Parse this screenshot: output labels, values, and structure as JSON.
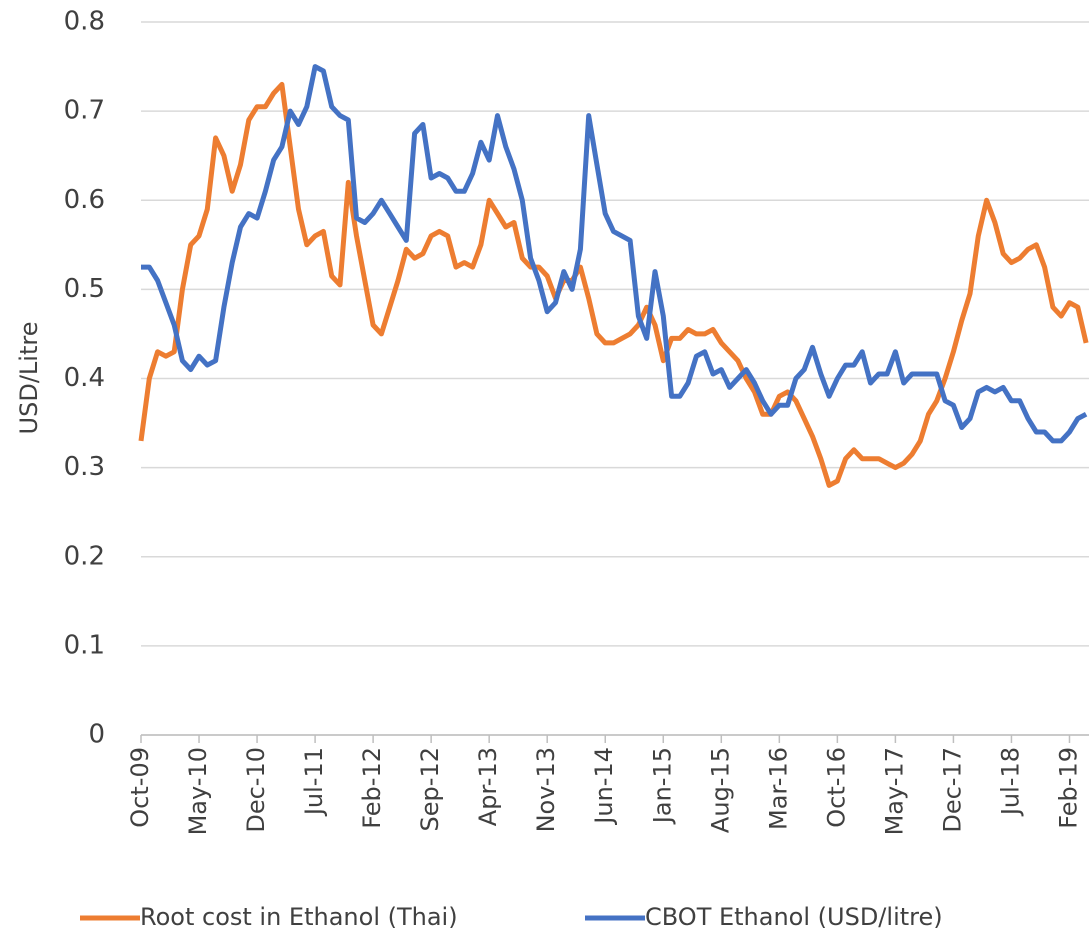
{
  "chart_data": {
    "type": "line",
    "y_label": "USD/Litre",
    "categories": [
      "Oct-09",
      null,
      null,
      null,
      null,
      null,
      null,
      "May-10",
      null,
      null,
      null,
      null,
      null,
      null,
      "Dec-10",
      null,
      null,
      null,
      null,
      null,
      null,
      "Jul-11",
      null,
      null,
      null,
      null,
      null,
      null,
      "Feb-12",
      null,
      null,
      null,
      null,
      null,
      null,
      "Sep-12",
      null,
      null,
      null,
      null,
      null,
      null,
      "Apr-13",
      null,
      null,
      null,
      null,
      null,
      null,
      "Nov-13",
      null,
      null,
      null,
      null,
      null,
      null,
      "Jun-14",
      null,
      null,
      null,
      null,
      null,
      null,
      "Jan-15",
      null,
      null,
      null,
      null,
      null,
      null,
      "Aug-15",
      null,
      null,
      null,
      null,
      null,
      null,
      "Mar-16",
      null,
      null,
      null,
      null,
      null,
      null,
      "Oct-16",
      null,
      null,
      null,
      null,
      null,
      null,
      "May-17",
      null,
      null,
      null,
      null,
      null,
      null,
      "Dec-17",
      null,
      null,
      null,
      null,
      null,
      null,
      "Jul-18",
      null,
      null,
      null,
      null,
      null,
      null,
      "Feb-19",
      null,
      null
    ],
    "series": [
      {
        "name": "Root cost in Ethanol (Thai)",
        "color": "#ED7D31",
        "values": [
          0.33,
          0.4,
          0.43,
          0.425,
          0.43,
          0.5,
          0.55,
          0.56,
          0.59,
          0.67,
          0.65,
          0.61,
          0.64,
          0.69,
          0.705,
          0.705,
          0.72,
          0.73,
          0.66,
          0.59,
          0.55,
          0.56,
          0.565,
          0.515,
          0.505,
          0.62,
          0.56,
          0.51,
          0.46,
          0.45,
          0.48,
          0.51,
          0.545,
          0.535,
          0.54,
          0.56,
          0.565,
          0.56,
          0.525,
          0.53,
          0.525,
          0.55,
          0.6,
          0.585,
          0.57,
          0.575,
          0.535,
          0.525,
          0.525,
          0.515,
          0.49,
          0.51,
          0.51,
          0.525,
          0.49,
          0.45,
          0.44,
          0.44,
          0.445,
          0.45,
          0.46,
          0.48,
          0.46,
          0.42,
          0.445,
          0.445,
          0.455,
          0.45,
          0.45,
          0.455,
          0.44,
          0.43,
          0.42,
          0.4,
          0.385,
          0.36,
          0.36,
          0.38,
          0.385,
          0.375,
          0.355,
          0.335,
          0.31,
          0.28,
          0.285,
          0.31,
          0.32,
          0.31,
          0.31,
          0.31,
          0.305,
          0.3,
          0.305,
          0.315,
          0.33,
          0.36,
          0.375,
          0.4,
          0.43,
          0.465,
          0.495,
          0.56,
          0.6,
          0.575,
          0.54,
          0.53,
          0.535,
          0.545,
          0.55,
          0.525,
          0.48,
          0.47,
          0.485,
          0.48,
          0.44
        ]
      },
      {
        "name": "CBOT Ethanol (USD/litre)",
        "color": "#4472C4",
        "values": [
          0.525,
          0.525,
          0.51,
          0.485,
          0.46,
          0.42,
          0.41,
          0.425,
          0.415,
          0.42,
          0.48,
          0.53,
          0.57,
          0.585,
          0.58,
          0.61,
          0.645,
          0.66,
          0.7,
          0.685,
          0.705,
          0.75,
          0.745,
          0.705,
          0.695,
          0.69,
          0.58,
          0.575,
          0.585,
          0.6,
          0.585,
          0.57,
          0.555,
          0.675,
          0.685,
          0.625,
          0.63,
          0.625,
          0.61,
          0.61,
          0.63,
          0.665,
          0.645,
          0.695,
          0.66,
          0.635,
          0.6,
          0.535,
          0.51,
          0.475,
          0.485,
          0.52,
          0.5,
          0.545,
          0.695,
          0.64,
          0.585,
          0.565,
          0.56,
          0.555,
          0.47,
          0.445,
          0.52,
          0.47,
          0.38,
          0.38,
          0.395,
          0.425,
          0.43,
          0.405,
          0.41,
          0.39,
          0.4,
          0.41,
          0.395,
          0.375,
          0.36,
          0.37,
          0.37,
          0.4,
          0.41,
          0.435,
          0.405,
          0.38,
          0.4,
          0.415,
          0.415,
          0.43,
          0.395,
          0.405,
          0.405,
          0.43,
          0.395,
          0.405,
          0.405,
          0.405,
          0.405,
          0.375,
          0.37,
          0.345,
          0.355,
          0.385,
          0.39,
          0.385,
          0.39,
          0.375,
          0.375,
          0.355,
          0.34,
          0.34,
          0.33,
          0.33,
          0.34,
          0.355,
          0.36
        ]
      }
    ],
    "ylim": [
      0,
      0.8
    ],
    "yticks": [
      0,
      0.1,
      0.2,
      0.3,
      0.4,
      0.5,
      0.6,
      0.7,
      0.8
    ],
    "grid": true
  }
}
